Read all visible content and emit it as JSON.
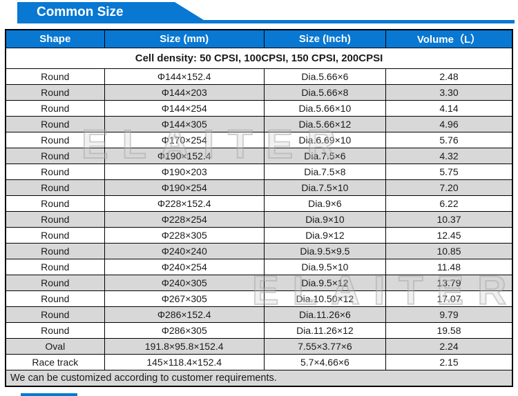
{
  "banner": {
    "title": "Common Size"
  },
  "watermark": {
    "text": "ELAITER"
  },
  "colors": {
    "accent_blue": "#0878d2",
    "row_alt_gray": "#d8d8d8",
    "banner_text": "#ffffff"
  },
  "table": {
    "caption": "Cell density: 50 CPSI, 100CPSI, 150 CPSI, 200CPSI",
    "columns": [
      "Shape",
      "Size (mm)",
      "Size (Inch)",
      "Volume（L）"
    ],
    "rows": [
      [
        "Round",
        "Φ144×152.4",
        "Dia.5.66×6",
        "2.48"
      ],
      [
        "Round",
        "Φ144×203",
        "Dia.5.66×8",
        "3.30"
      ],
      [
        "Round",
        "Φ144×254",
        "Dia.5.66×10",
        "4.14"
      ],
      [
        "Round",
        "Φ144×305",
        "Dia.5.66×12",
        "4.96"
      ],
      [
        "Round",
        "Φ170×254",
        "Dia.6.69×10",
        "5.76"
      ],
      [
        "Round",
        "Φ190×152.4",
        "Dia.7.5×6",
        "4.32"
      ],
      [
        "Round",
        "Φ190×203",
        "Dia.7.5×8",
        "5.75"
      ],
      [
        "Round",
        "Φ190×254",
        "Dia.7.5×10",
        "7.20"
      ],
      [
        "Round",
        "Φ228×152.4",
        "Dia.9×6",
        "6.22"
      ],
      [
        "Round",
        "Φ228×254",
        "Dia.9×10",
        "10.37"
      ],
      [
        "Round",
        "Φ228×305",
        "Dia.9×12",
        "12.45"
      ],
      [
        "Round",
        "Φ240×240",
        "Dia.9.5×9.5",
        "10.85"
      ],
      [
        "Round",
        "Φ240×254",
        "Dia.9.5×10",
        "11.48"
      ],
      [
        "Round",
        "Φ240×305",
        "Dia.9.5×12",
        "13.79"
      ],
      [
        "Round",
        "Φ267×305",
        "Dia.10.50×12",
        "17.07"
      ],
      [
        "Round",
        "Φ286×152.4",
        "Dia.11.26×6",
        "9.79"
      ],
      [
        "Round",
        "Φ286×305",
        "Dia.11.26×12",
        "19.58"
      ],
      [
        "Oval",
        "191.8×95.8×152.4",
        "7.55×3.77×6",
        "2.24"
      ],
      [
        "Race track",
        "145×118.4×152.4",
        "5.7×4.66×6",
        "2.15"
      ]
    ],
    "footer": "We can be customized according to customer requirements."
  }
}
